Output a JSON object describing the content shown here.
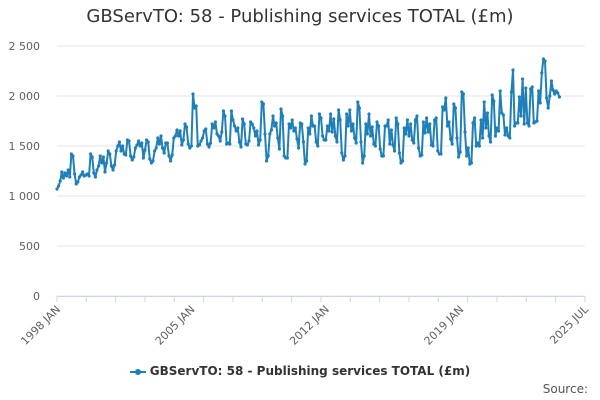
{
  "chart_data": {
    "type": "line",
    "title": "GBServTO: 58 - Publishing services TOTAL (£m)",
    "xlabel": "",
    "ylabel": "",
    "ylim": [
      0,
      2500
    ],
    "y_ticks": [
      "0",
      "500",
      "1 000",
      "1 500",
      "2 000",
      "2 500"
    ],
    "y_tick_values": [
      0,
      500,
      1000,
      1500,
      2000,
      2500
    ],
    "x_tick_labels": [
      "1998 JAN",
      "2005 JAN",
      "2012 JAN",
      "2019 JAN",
      "2025 JUL"
    ],
    "x_tick_dates": [
      "1998-01",
      "2005-01",
      "2012-01",
      "2019-01",
      "2025-07"
    ],
    "grid": true,
    "legend_position": "bottom",
    "series": [
      {
        "name": "GBServTO: 58 - Publishing services TOTAL (£m)",
        "color": "#1f7fb8",
        "start": "1998-01",
        "frequency": "monthly",
        "values": [
          1070,
          1100,
          1150,
          1240,
          1180,
          1230,
          1200,
          1260,
          1190,
          1420,
          1400,
          1220,
          1120,
          1140,
          1190,
          1210,
          1240,
          1200,
          1210,
          1220,
          1200,
          1420,
          1390,
          1230,
          1190,
          1260,
          1300,
          1400,
          1330,
          1390,
          1240,
          1330,
          1450,
          1420,
          1300,
          1260,
          1310,
          1450,
          1500,
          1540,
          1450,
          1500,
          1420,
          1410,
          1560,
          1550,
          1400,
          1360,
          1390,
          1480,
          1510,
          1550,
          1500,
          1530,
          1380,
          1460,
          1560,
          1540,
          1370,
          1330,
          1350,
          1450,
          1480,
          1580,
          1520,
          1600,
          1480,
          1430,
          1530,
          1530,
          1400,
          1350,
          1410,
          1580,
          1600,
          1660,
          1600,
          1650,
          1510,
          1560,
          1720,
          1690,
          1520,
          1480,
          1500,
          2020,
          1880,
          1900,
          1500,
          1510,
          1550,
          1580,
          1650,
          1670,
          1520,
          1490,
          1530,
          1720,
          1680,
          1740,
          1620,
          1600,
          1550,
          1640,
          1850,
          1800,
          1520,
          1530,
          1520,
          1850,
          1760,
          1700,
          1650,
          1680,
          1540,
          1490,
          1770,
          1720,
          1520,
          1510,
          1550,
          1740,
          1720,
          1680,
          1600,
          1650,
          1510,
          1560,
          1940,
          1920,
          1620,
          1350,
          1400,
          1620,
          1660,
          1800,
          1700,
          1730,
          1580,
          1470,
          1870,
          1800,
          1400,
          1380,
          1380,
          1720,
          1680,
          1760,
          1650,
          1680,
          1570,
          1480,
          1730,
          1720,
          1540,
          1320,
          1350,
          1680,
          1620,
          1800,
          1700,
          1700,
          1540,
          1500,
          1820,
          1780,
          1600,
          1560,
          1560,
          1700,
          1650,
          1820,
          1640,
          1770,
          1600,
          1540,
          1860,
          1760,
          1430,
          1360,
          1400,
          1820,
          1700,
          1860,
          1650,
          1720,
          1580,
          1530,
          1940,
          1880,
          1540,
          1330,
          1400,
          1720,
          1620,
          1820,
          1600,
          1690,
          1520,
          1500,
          1740,
          1700,
          1470,
          1400,
          1400,
          1700,
          1700,
          1760,
          1520,
          1660,
          1510,
          1450,
          1780,
          1720,
          1430,
          1330,
          1350,
          1680,
          1620,
          1760,
          1600,
          1720,
          1560,
          1530,
          1760,
          1800,
          1480,
          1400,
          1410,
          1740,
          1630,
          1780,
          1640,
          1720,
          1510,
          1500,
          1760,
          1780,
          1450,
          1420,
          1420,
          1890,
          1860,
          1980,
          1700,
          1740,
          1570,
          1520,
          1920,
          1880,
          1580,
          1390,
          1440,
          2040,
          2020,
          1640,
          1400,
          1480,
          1320,
          1330,
          1730,
          1780,
          1500,
          1530,
          1500,
          1760,
          1580,
          1940,
          1680,
          1830,
          1600,
          1540,
          2010,
          1950,
          1600,
          1680,
          1650,
          2050,
          1830,
          1810,
          1610,
          1680,
          1600,
          1580,
          2040,
          2260,
          1700,
          1730,
          1730,
          1990,
          1800,
          2170,
          1720,
          2080,
          1730,
          1700,
          2070,
          2090,
          1730,
          1740,
          1750,
          2050,
          1930,
          2230,
          2370,
          2350,
          1980,
          1880,
          2000,
          2150,
          2060,
          2020,
          2050,
          2030,
          1990
        ]
      }
    ],
    "source_label": "Source:"
  }
}
